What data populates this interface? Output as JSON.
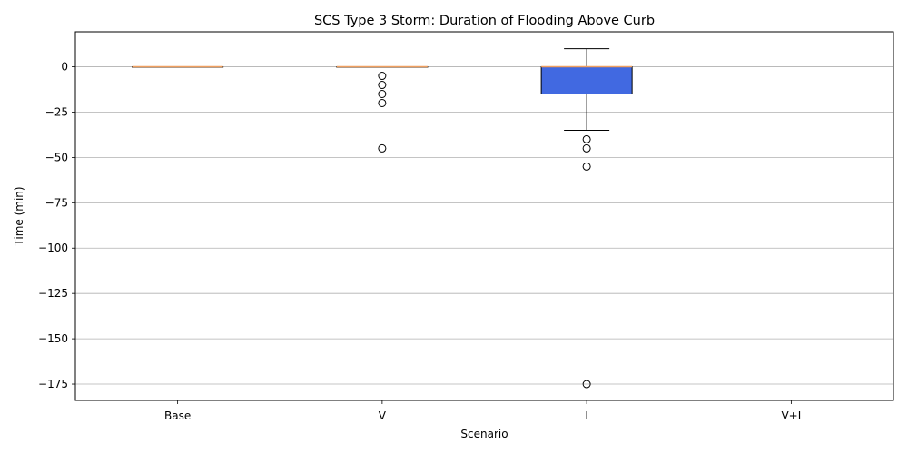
{
  "chart_data": {
    "type": "box",
    "title": "SCS Type 3 Storm: Duration of Flooding Above Curb",
    "xlabel": "Scenario",
    "ylabel": "Time (min)",
    "ylim": [
      -184,
      19.3
    ],
    "yticks": [
      0,
      -25,
      -50,
      -75,
      -100,
      -125,
      -150,
      -175
    ],
    "ytick_labels": [
      "0",
      "−25",
      "−50",
      "−75",
      "−100",
      "−125",
      "−150",
      "−175"
    ],
    "grid": "y",
    "categories": [
      "Base",
      "V",
      "I",
      "V+I"
    ],
    "boxes": [
      {
        "category": "Base",
        "whisker_low": 0,
        "q1": 0,
        "median": 0,
        "q3": 0,
        "whisker_high": 0,
        "outliers": []
      },
      {
        "category": "V",
        "whisker_low": 0,
        "q1": 0,
        "median": 0,
        "q3": 0,
        "whisker_high": 0,
        "outliers": [
          -5,
          -10,
          -15,
          -20,
          -45
        ]
      },
      {
        "category": "I",
        "whisker_low": -35,
        "q1": -15,
        "median": 0,
        "q3": 0,
        "whisker_high": 10,
        "outliers": [
          -40,
          -45,
          -55,
          -175
        ]
      },
      {
        "category": "V+I",
        "whisker_low": null,
        "q1": null,
        "median": null,
        "q3": null,
        "whisker_high": null,
        "outliers": []
      }
    ],
    "colors": {
      "box_fill": "#4169e1",
      "median": "#f0a060",
      "grid": "#b0b0b0",
      "frame": "#000000"
    }
  }
}
